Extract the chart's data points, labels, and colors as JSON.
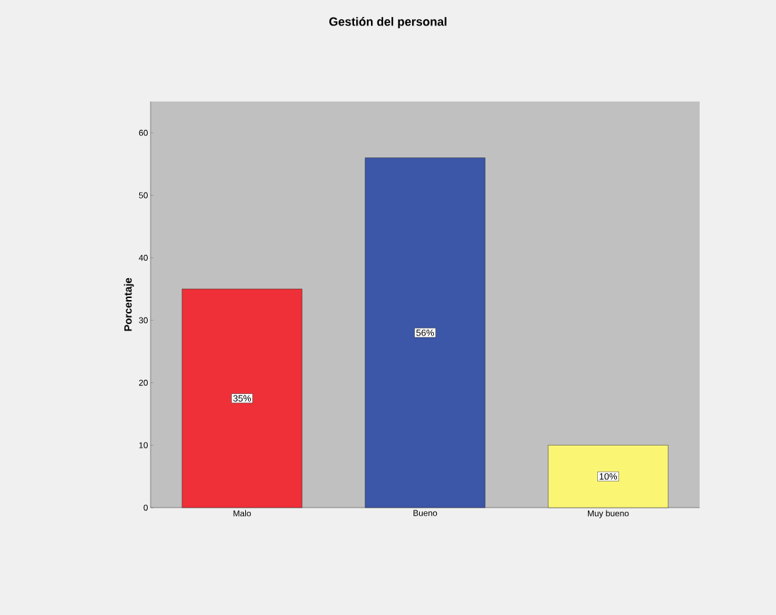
{
  "chart_data": {
    "type": "bar",
    "title": "Gestión del personal",
    "ylabel": "Porcentaje",
    "categories": [
      "Malo",
      "Bueno",
      "Muy bueno"
    ],
    "values": [
      35,
      56,
      10
    ],
    "value_labels": [
      "35%",
      "56%",
      "10%"
    ],
    "colors": [
      "#ef3038",
      "#3c57a8",
      "#fbf574"
    ],
    "ylim": [
      0,
      65
    ],
    "yticks": [
      0,
      10,
      20,
      30,
      40,
      50,
      60
    ]
  }
}
